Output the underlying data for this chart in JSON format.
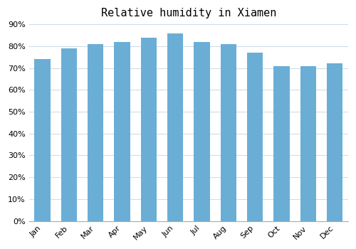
{
  "title": "Relative humidity in Xiamen",
  "months": [
    "Jan",
    "Feb",
    "Mar",
    "Apr",
    "May",
    "Jun",
    "Jul",
    "Aug",
    "Sep",
    "Oct",
    "Nov",
    "Dec"
  ],
  "values": [
    74,
    79,
    81,
    82,
    84,
    86,
    82,
    81,
    77,
    71,
    71,
    72
  ],
  "bar_color": "#6aaed6",
  "background_color": "#ffffff",
  "grid_color": "#d0dde8",
  "ylim": [
    0,
    90
  ],
  "ytick_step": 10,
  "title_fontsize": 11,
  "tick_fontsize": 8,
  "figsize": [
    5.0,
    3.5
  ],
  "dpi": 100,
  "bar_width": 0.6
}
